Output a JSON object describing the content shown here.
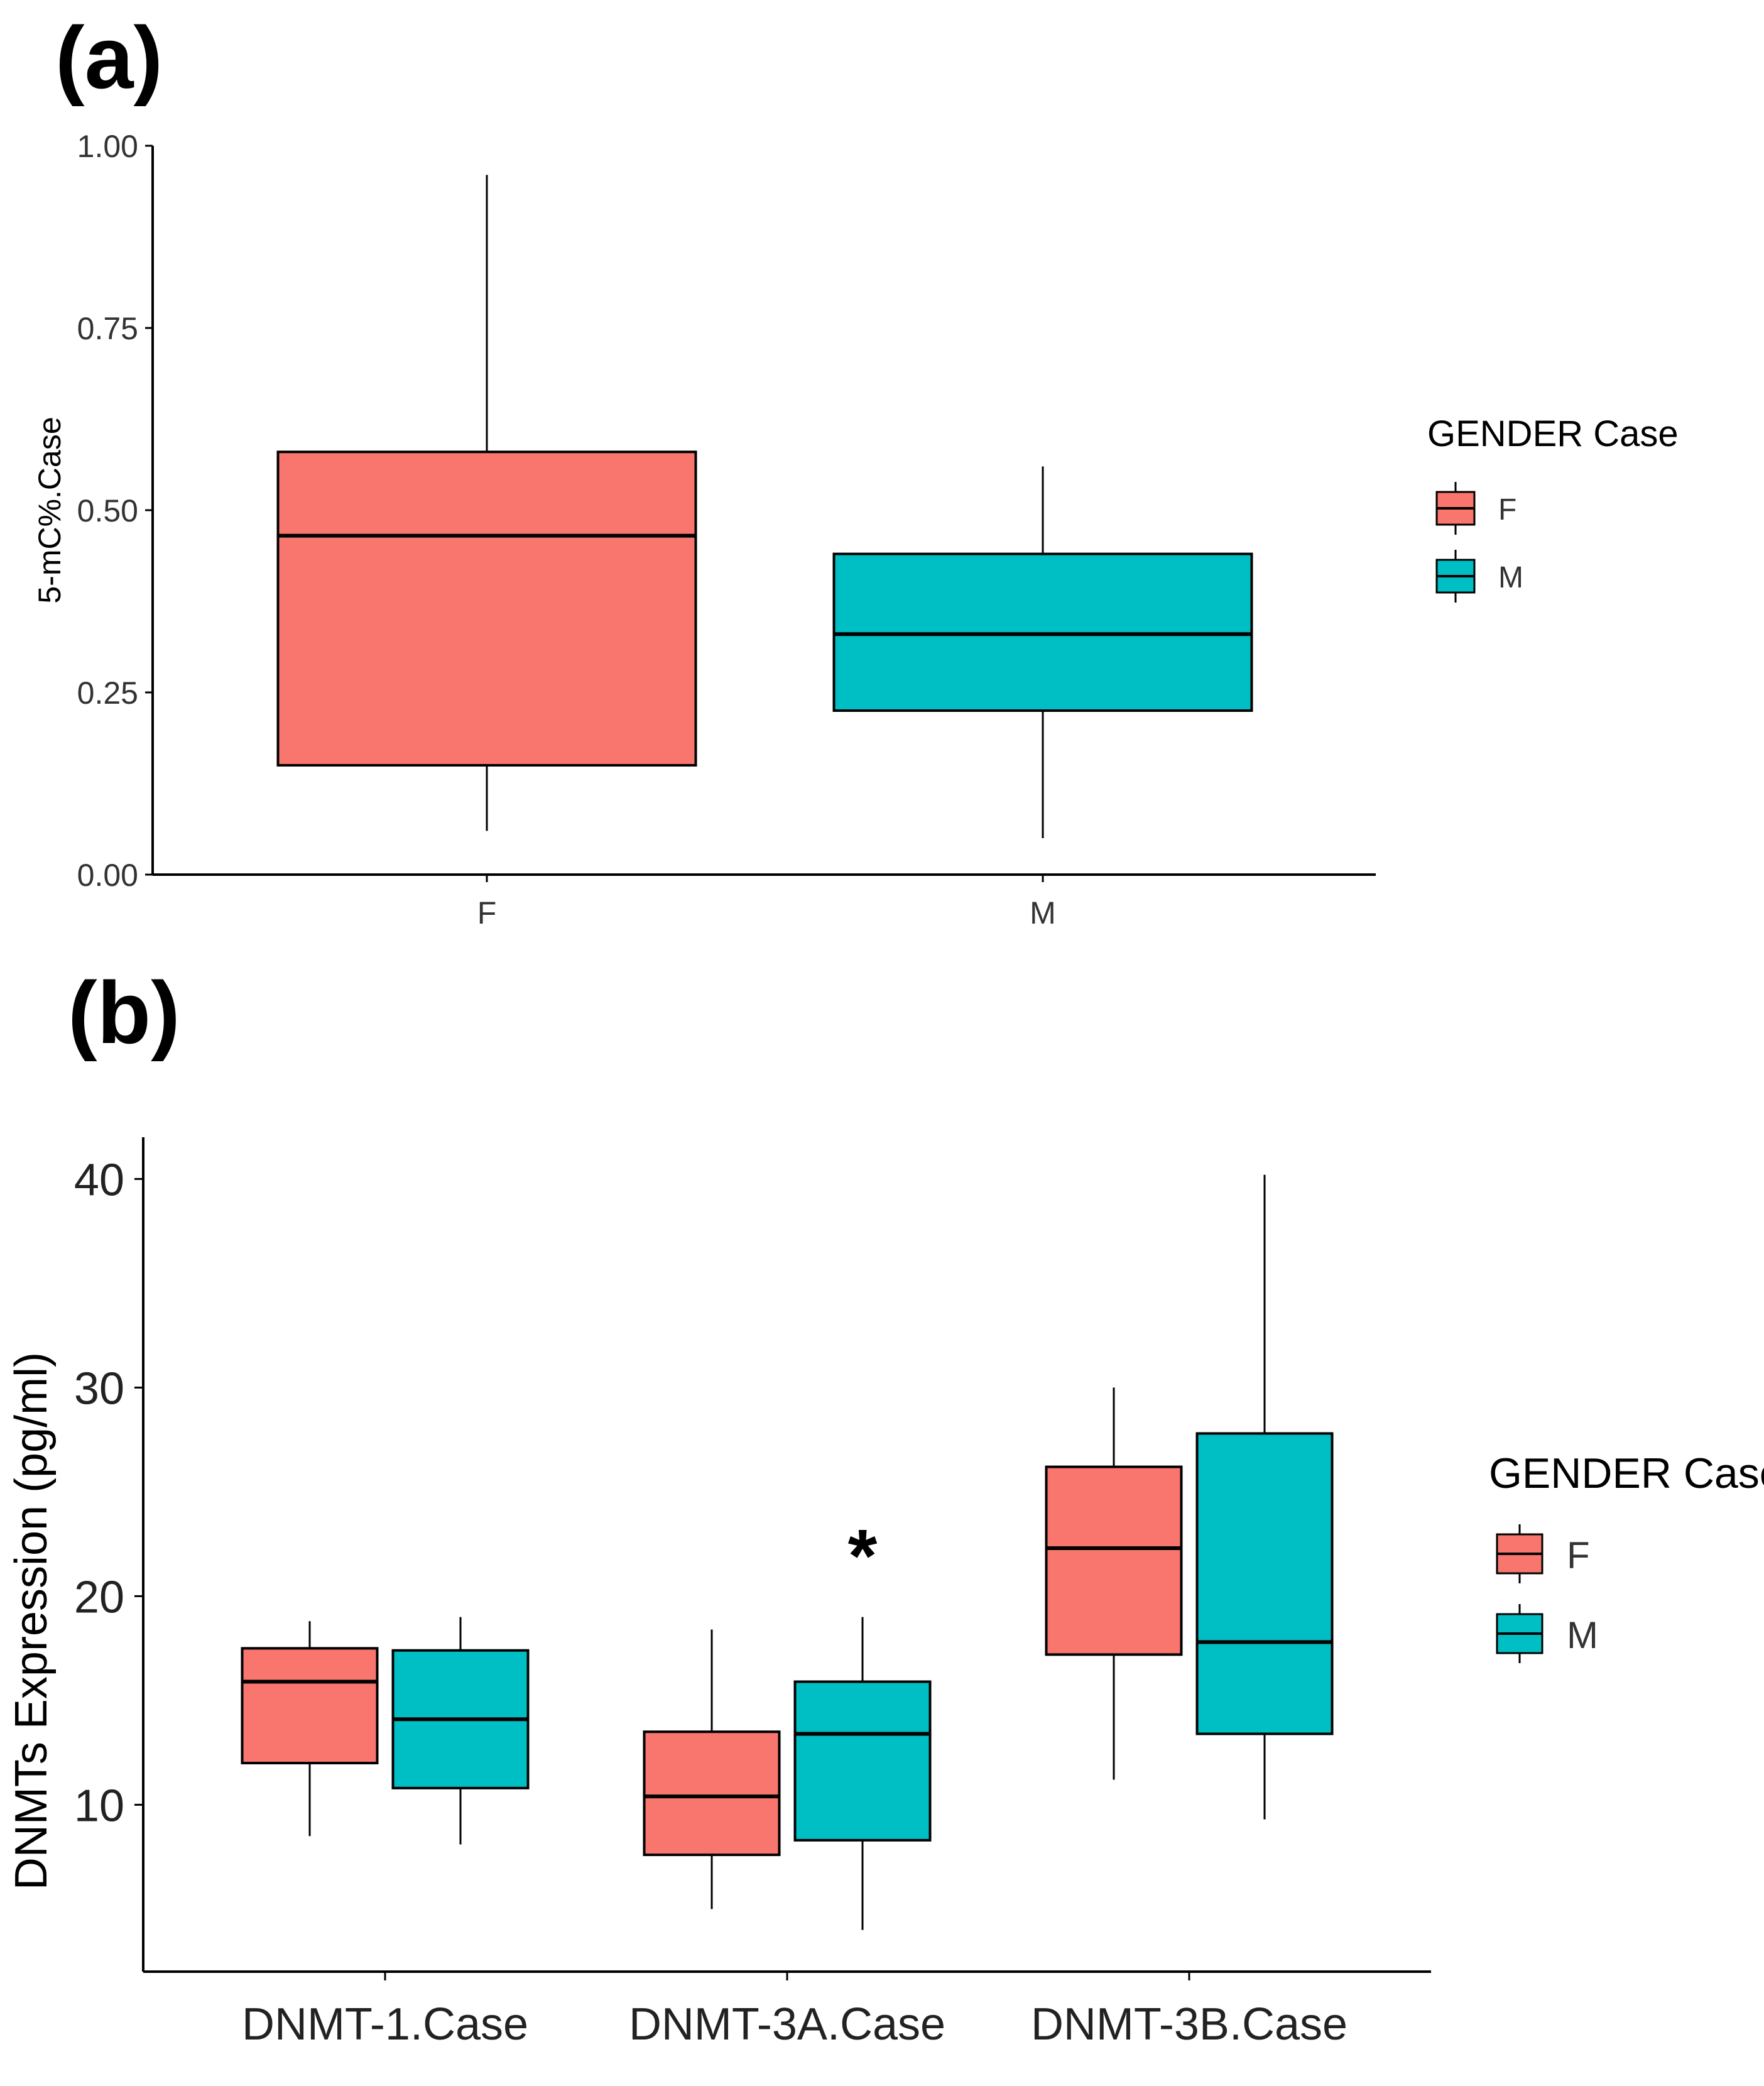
{
  "panel_a_label": "(a)",
  "panel_b_label": "(b)",
  "colors": {
    "F": "#f8766d",
    "M": "#00bfc4"
  },
  "chart_data": [
    {
      "type": "box",
      "panel": "a",
      "ylabel": "5-mC%.Case",
      "xlabel": "",
      "ylim": [
        0,
        1
      ],
      "yticks": [
        "0.00",
        "0.25",
        "0.50",
        "0.75",
        "1.00"
      ],
      "ytick_values": [
        0,
        0.25,
        0.5,
        0.75,
        1
      ],
      "categories": [
        "F",
        "M"
      ],
      "legend_title": "GENDER Case",
      "legend": [
        "F",
        "M"
      ],
      "series": [
        {
          "name": "F",
          "category": "F",
          "min": 0.06,
          "q1": 0.15,
          "median": 0.465,
          "q3": 0.58,
          "max": 0.96
        },
        {
          "name": "M",
          "category": "M",
          "min": 0.05,
          "q1": 0.225,
          "median": 0.33,
          "q3": 0.44,
          "max": 0.56
        }
      ]
    },
    {
      "type": "box",
      "panel": "b",
      "ylabel": "DNMTs Expression (pg/ml)",
      "xlabel": "",
      "ylim": [
        2,
        42
      ],
      "yticks": [
        "10",
        "20",
        "30",
        "40"
      ],
      "ytick_values": [
        10,
        20,
        30,
        40
      ],
      "categories": [
        "DNMT-1.Case",
        "DNMT-3A.Case",
        "DNMT-3B.Case"
      ],
      "legend_title": "GENDER Case",
      "legend": [
        "F",
        "M"
      ],
      "annotation": {
        "text": "*",
        "category": "DNMT-3A.Case",
        "series": "M",
        "y": 22.5
      },
      "series": [
        {
          "name": "F",
          "boxes": [
            {
              "category": "DNMT-1.Case",
              "min": 8.5,
              "q1": 12.0,
              "median": 15.9,
              "q3": 17.5,
              "max": 18.8
            },
            {
              "category": "DNMT-3A.Case",
              "min": 5.0,
              "q1": 7.6,
              "median": 10.4,
              "q3": 13.5,
              "max": 18.4
            },
            {
              "category": "DNMT-3B.Case",
              "min": 11.2,
              "q1": 17.2,
              "median": 22.3,
              "q3": 26.2,
              "max": 30.0
            }
          ]
        },
        {
          "name": "M",
          "boxes": [
            {
              "category": "DNMT-1.Case",
              "min": 8.1,
              "q1": 10.8,
              "median": 14.1,
              "q3": 17.4,
              "max": 19.0
            },
            {
              "category": "DNMT-3A.Case",
              "min": 4.0,
              "q1": 8.3,
              "median": 13.4,
              "q3": 15.9,
              "max": 19.0
            },
            {
              "category": "DNMT-3B.Case",
              "min": 9.3,
              "q1": 13.4,
              "median": 17.8,
              "q3": 27.8,
              "max": 40.2
            }
          ]
        }
      ]
    }
  ]
}
